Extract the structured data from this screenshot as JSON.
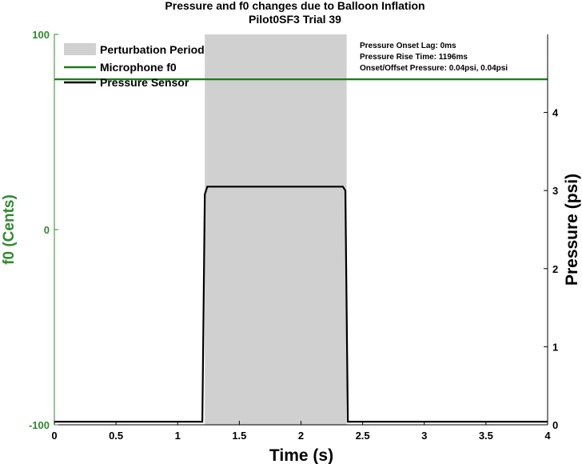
{
  "chart_data": {
    "type": "line",
    "title": "Pressure and f0 changes due to Balloon Inflation",
    "subtitle": "Pilot0SF3 Trial 39",
    "xlabel": "Time (s)",
    "ylabel_left": "f0 (Cents)",
    "ylabel_right": "Pressure (psi)",
    "xlim": [
      0,
      4
    ],
    "ylim_left": [
      -100,
      100
    ],
    "ylim_right": [
      0,
      5
    ],
    "x_ticks": [
      "0",
      "0.5",
      "1",
      "1.5",
      "2",
      "2.5",
      "3",
      "3.5",
      "4"
    ],
    "x_tick_values": [
      0,
      0.5,
      1,
      1.5,
      2,
      2.5,
      3,
      3.5,
      4
    ],
    "y_left_ticks": [
      "-100",
      "0",
      "100"
    ],
    "y_left_tick_values": [
      -100,
      0,
      100
    ],
    "y_right_ticks": [
      "0",
      "1",
      "2",
      "3",
      "4"
    ],
    "y_right_tick_values": [
      0,
      1,
      2,
      3,
      4
    ],
    "grid": false,
    "legend_position": "top-left",
    "colors": {
      "f0": "#1f7a1f",
      "pressure": "#000000",
      "perturbation": "#d0d0d0",
      "left_axis": "#2e8b2e"
    },
    "perturbation_period": {
      "name": "Perturbation Period",
      "start": 1.22,
      "end": 2.37
    },
    "series": [
      {
        "name": "Microphone f0",
        "axis": "left",
        "x": [
          0,
          4
        ],
        "y": [
          77,
          77
        ]
      },
      {
        "name": "Pressure Sensor",
        "axis": "right",
        "x": [
          0,
          1.2,
          1.22,
          1.24,
          2.34,
          2.36,
          2.38,
          4
        ],
        "y": [
          0.04,
          0.04,
          2.95,
          3.05,
          3.05,
          3.0,
          0.04,
          0.04
        ]
      }
    ],
    "legend": [
      "Perturbation Period",
      "Microphone f0",
      "Pressure Sensor"
    ],
    "annotations": [
      "Pressure Onset Lag: 0ms",
      "Pressure Rise Time: 1196ms",
      "Onset/Offset Pressure: 0.04psi, 0.04psi"
    ]
  }
}
